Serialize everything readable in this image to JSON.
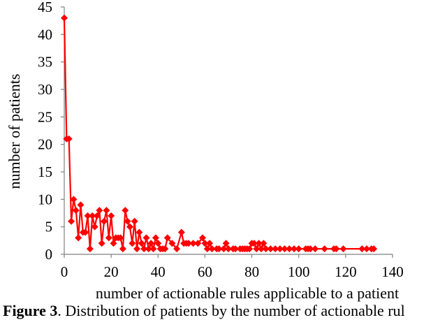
{
  "chart_data": {
    "type": "line",
    "title": "",
    "xlabel": "number of actionable rules applicable to a patient",
    "ylabel": "number of patients",
    "xlim": [
      0,
      140
    ],
    "ylim": [
      0,
      45
    ],
    "xticks": [
      0,
      20,
      40,
      60,
      80,
      100,
      120,
      140
    ],
    "yticks": [
      0,
      5,
      10,
      15,
      20,
      25,
      30,
      35,
      40,
      45
    ],
    "grid": false,
    "legend": null,
    "marker": "diamond",
    "color": "#ff0000",
    "series": [
      {
        "name": "patients",
        "x": [
          0,
          1,
          2,
          3,
          4,
          5,
          6,
          7,
          8,
          9,
          10,
          11,
          12,
          13,
          14,
          15,
          16,
          17,
          18,
          19,
          20,
          21,
          22,
          23,
          24,
          25,
          26,
          27,
          28,
          29,
          30,
          31,
          32,
          33,
          34,
          35,
          36,
          37,
          38,
          39,
          40,
          41,
          42,
          43,
          44,
          46,
          48,
          50,
          51,
          52,
          53,
          55,
          57,
          59,
          60,
          61,
          62,
          63,
          65,
          66,
          68,
          69,
          70,
          72,
          73,
          75,
          76,
          77,
          78,
          79,
          80,
          81,
          82,
          83,
          84,
          85,
          86,
          88,
          90,
          92,
          94,
          96,
          98,
          100,
          103,
          104,
          105,
          107,
          111,
          115,
          116,
          119,
          127,
          129,
          131,
          132
        ],
        "y": [
          43,
          21,
          21,
          6,
          10,
          8,
          3,
          9,
          4,
          4,
          7,
          1,
          7,
          5,
          7,
          8,
          2,
          6,
          8,
          3,
          7,
          2,
          3,
          3,
          3,
          1,
          8,
          6,
          5,
          2,
          6,
          1,
          4,
          2,
          1,
          3,
          1,
          2,
          1,
          3,
          2,
          1,
          1,
          1,
          3,
          2,
          1,
          4,
          2,
          2,
          2,
          2,
          2,
          3,
          2,
          1,
          2,
          1,
          1,
          1,
          1,
          2,
          1,
          1,
          1,
          1,
          1,
          1,
          1,
          1,
          2,
          2,
          1,
          2,
          1,
          2,
          1,
          1,
          1,
          1,
          1,
          1,
          1,
          1,
          1,
          1,
          1,
          1,
          1,
          1,
          1,
          1,
          1,
          1,
          1,
          1
        ]
      }
    ]
  },
  "caption": {
    "label": "Figure 3",
    "text": ". Distribution of patients by the number of actionable rul"
  }
}
